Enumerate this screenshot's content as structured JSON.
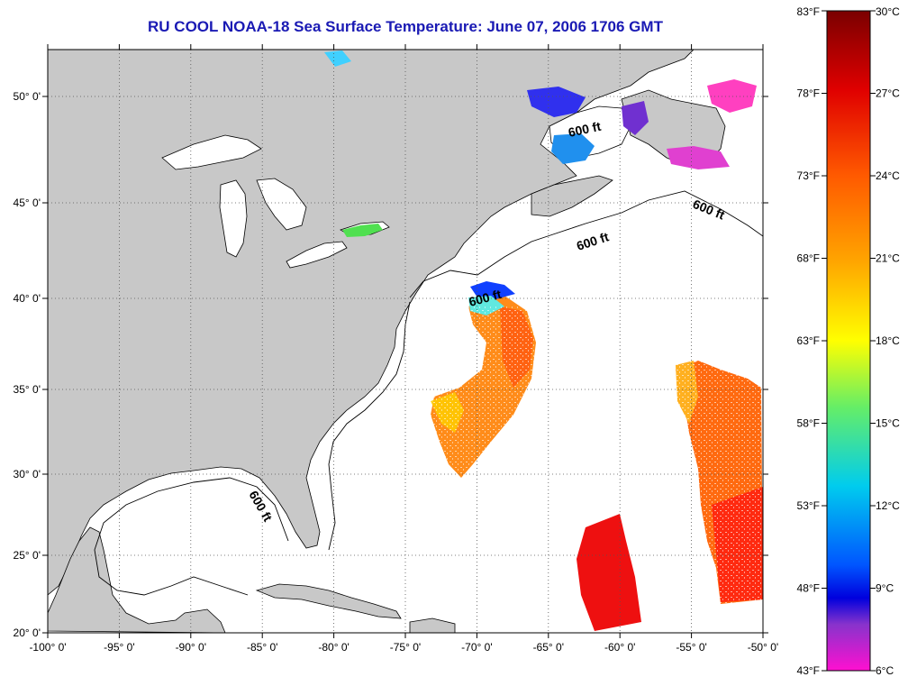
{
  "title": "RU COOL  NOAA-18  Sea Surface Temperature:  June 07, 2006 1706 GMT",
  "map": {
    "lon_range": [
      -100,
      -50
    ],
    "lat_range": [
      20,
      52
    ],
    "lon_ticks": [
      "-100° 0'",
      "-95° 0'",
      "-90° 0'",
      "-85° 0'",
      "-80° 0'",
      "-75° 0'",
      "-70° 0'",
      "-65° 0'",
      "-60° 0'",
      "-55° 0'",
      "-50° 0'"
    ],
    "lat_ticks": [
      "20° 0'",
      "25° 0'",
      "30° 0'",
      "35° 0'",
      "40° 0'",
      "45° 0'",
      "50° 0'"
    ],
    "isobath_labels": [
      "600 ft",
      "600 ft",
      "600 ft",
      "600 ft",
      "600 ft"
    ],
    "land_color": "#c8c8c8",
    "ocean_color": "#ffffff"
  },
  "colorbar": {
    "celsius_labels": [
      "30°C",
      "27°C",
      "24°C",
      "21°C",
      "18°C",
      "15°C",
      "12°C",
      "9°C",
      "6°C"
    ],
    "fahrenheit_labels": [
      "83°F",
      "78°F",
      "73°F",
      "68°F",
      "63°F",
      "58°F",
      "53°F",
      "48°F",
      "43°F"
    ],
    "celsius_range": [
      6,
      30
    ],
    "fahrenheit_range": [
      43,
      83
    ],
    "colors_top_to_bottom": [
      "#8b0000",
      "#ff1a00",
      "#ff8c00",
      "#ffff00",
      "#33ee66",
      "#00c8e8",
      "#0040ff",
      "#0000ff",
      "#8a2be2",
      "#ff00ff"
    ]
  }
}
